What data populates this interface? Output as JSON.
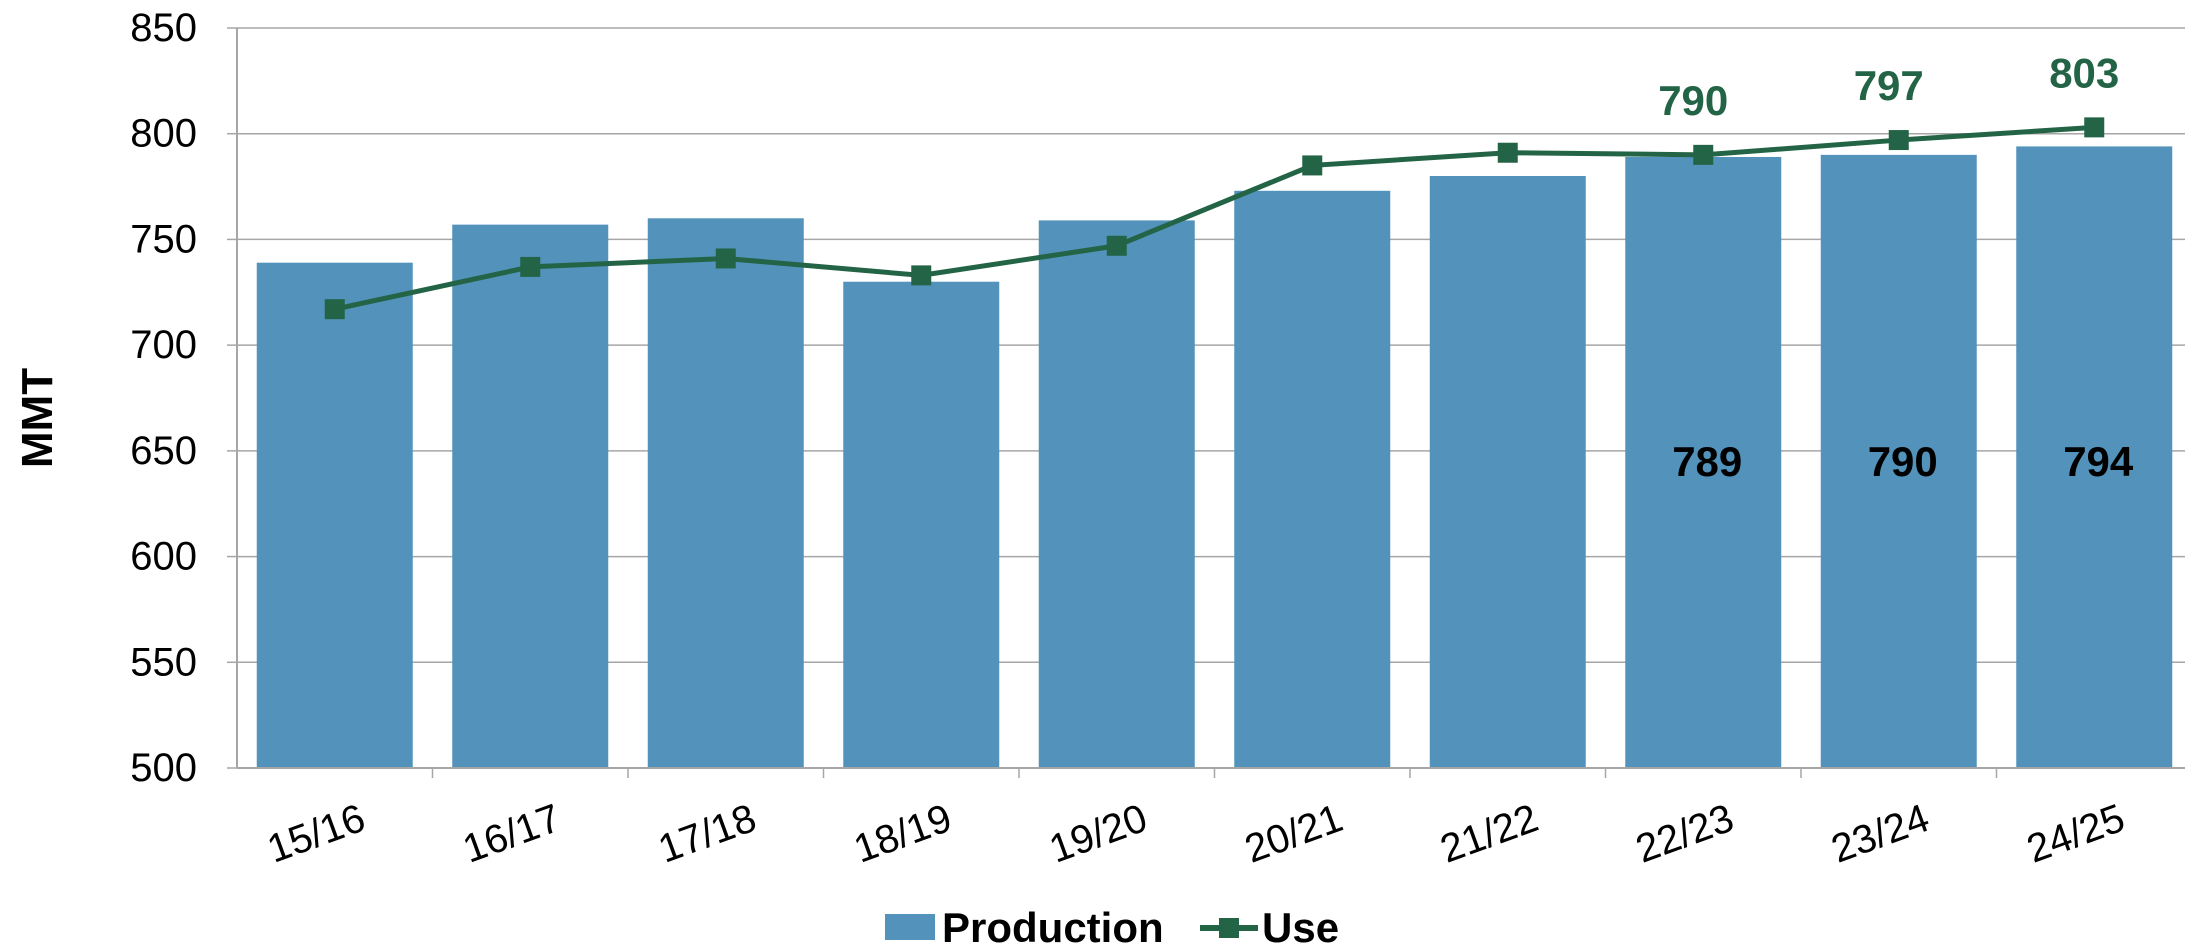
{
  "chart_data": {
    "type": "bar",
    "title": "",
    "xlabel": "",
    "ylabel": "MMT",
    "categories": [
      "15/16",
      "16/17",
      "17/18",
      "18/19",
      "19/20",
      "20/21",
      "21/22",
      "22/23",
      "23/24",
      "24/25"
    ],
    "ylim": [
      500,
      850
    ],
    "yticks": [
      "500",
      "550",
      "600",
      "650",
      "700",
      "750",
      "800",
      "850"
    ],
    "grid": true,
    "legend_position": "bottom",
    "series": [
      {
        "name": "Production",
        "type": "bar",
        "color": "#5393bb",
        "values": [
          739,
          757,
          760,
          730,
          759,
          773,
          780,
          789,
          790,
          794
        ],
        "labels": [
          "",
          "",
          "",
          "",
          "",
          "",
          "",
          "789",
          "790",
          "794"
        ]
      },
      {
        "name": "Use",
        "type": "line",
        "color": "#236446",
        "marker": "square",
        "values": [
          717,
          737,
          741,
          733,
          747,
          785,
          791,
          790,
          797,
          803
        ],
        "labels": [
          "",
          "",
          "",
          "",
          "",
          "",
          "",
          "790",
          "797",
          "803"
        ]
      }
    ]
  }
}
